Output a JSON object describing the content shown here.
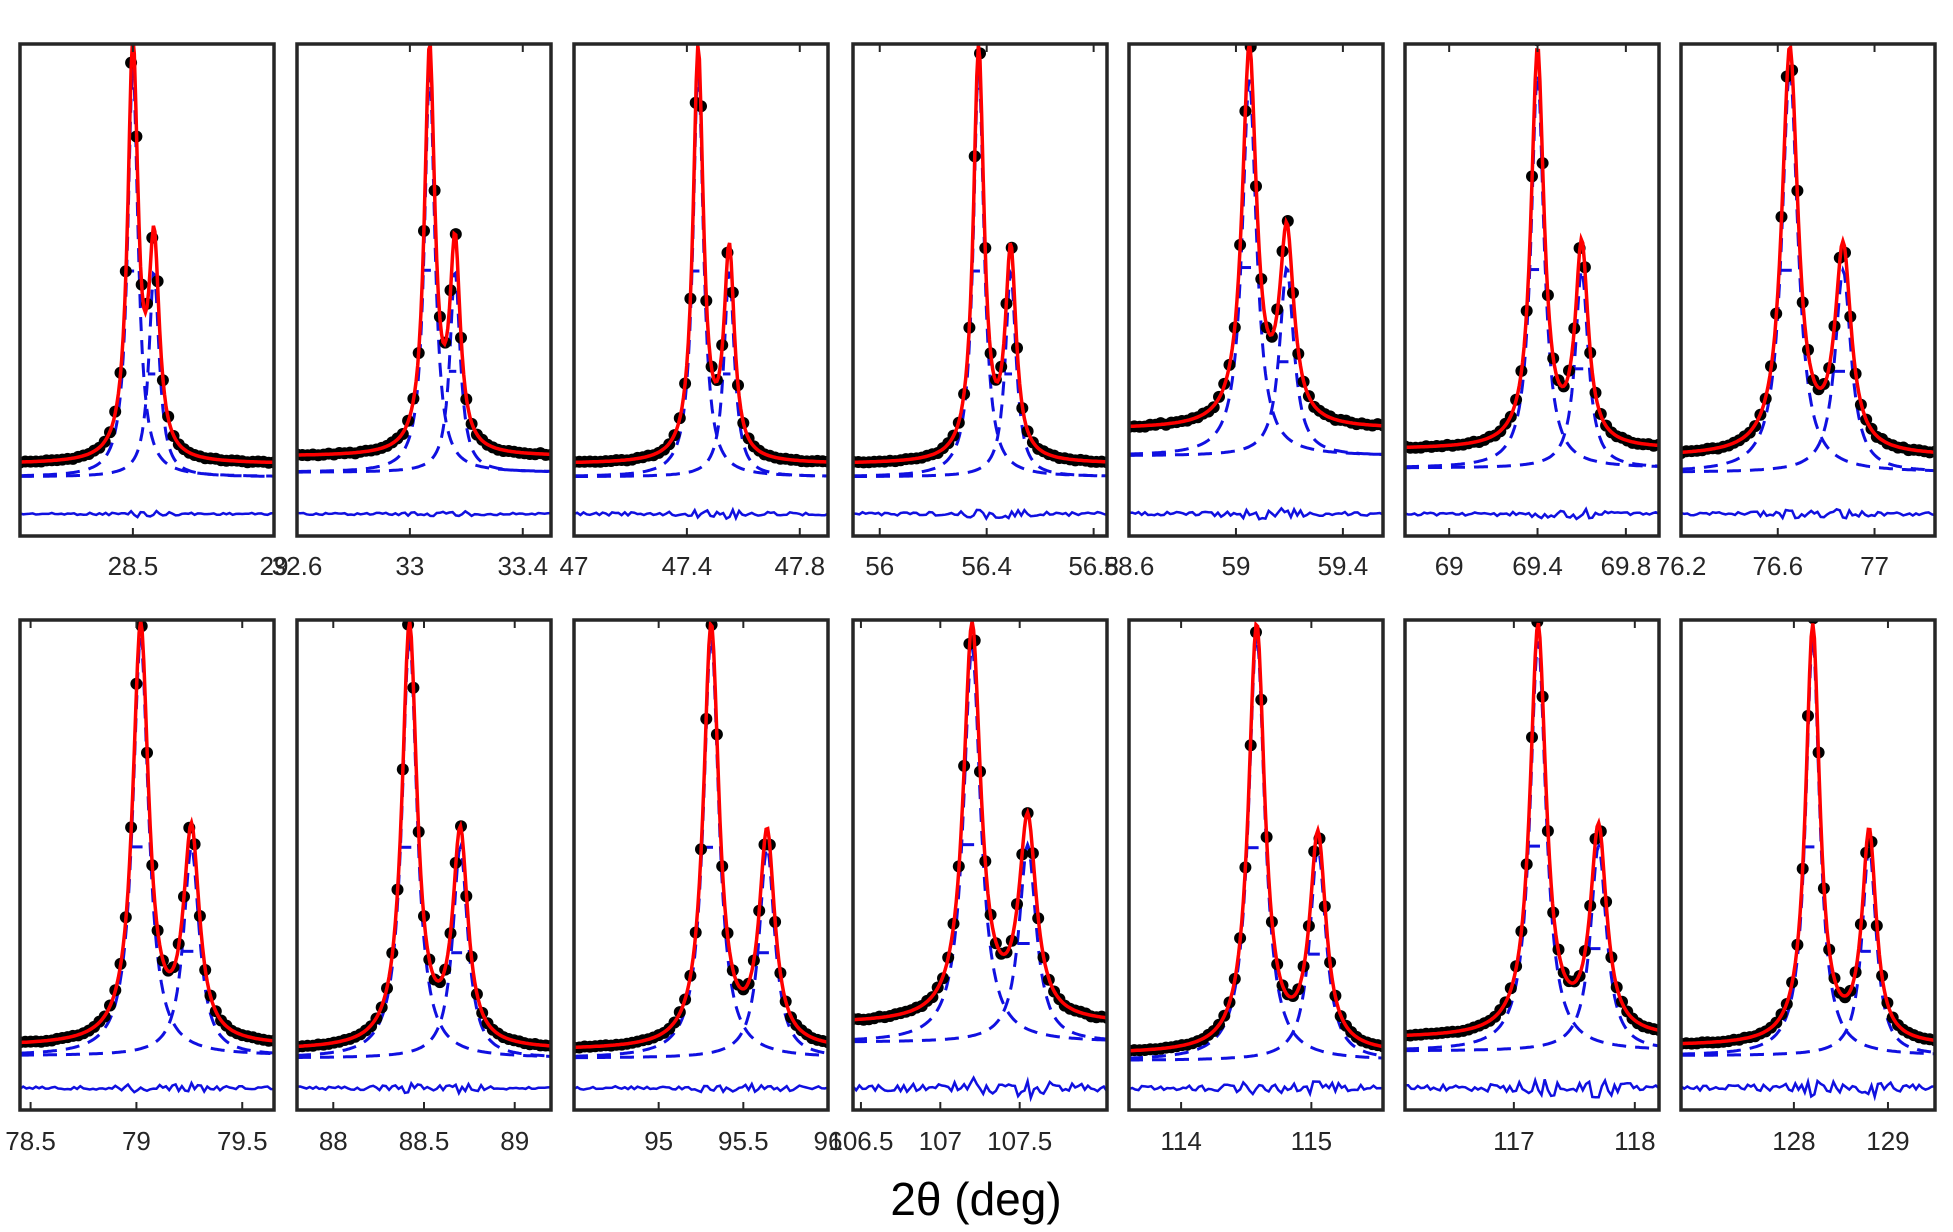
{
  "figure": {
    "xlabel": "2θ (deg)"
  },
  "colors": {
    "data": "#000000",
    "fit": "#ff0000",
    "component": "#1010e0",
    "difference": "#1010e0",
    "frame": "#262626"
  },
  "chart_data": [
    {
      "type": "line",
      "row": 1,
      "xlim": [
        28.1,
        29.0
      ],
      "ticks": [
        28.5,
        29
      ],
      "tick_labels": [
        "28.5",
        "29"
      ],
      "base": 0.08,
      "noise": 0.3,
      "peaks": [
        {
          "center": 28.5,
          "height": 1.0,
          "width": 0.022
        },
        {
          "center": 28.575,
          "height": 0.5,
          "width": 0.022
        }
      ]
    },
    {
      "type": "line",
      "row": 1,
      "xlim": [
        32.6,
        33.5
      ],
      "ticks": [
        32.6,
        33,
        33.4
      ],
      "tick_labels": [
        "32.6",
        "33",
        "33.4"
      ],
      "base": 0.1,
      "noise": 0.35,
      "peaks": [
        {
          "center": 33.07,
          "height": 1.0,
          "width": 0.022
        },
        {
          "center": 33.16,
          "height": 0.5,
          "width": 0.022
        }
      ]
    },
    {
      "type": "line",
      "row": 1,
      "xlim": [
        47.0,
        47.9
      ],
      "ticks": [
        47,
        47.4,
        47.8
      ],
      "tick_labels": [
        "47",
        "47.4",
        "47.8"
      ],
      "base": 0.08,
      "noise": 0.5,
      "peaks": [
        {
          "center": 47.44,
          "height": 1.0,
          "width": 0.022
        },
        {
          "center": 47.55,
          "height": 0.5,
          "width": 0.022
        }
      ]
    },
    {
      "type": "line",
      "row": 1,
      "xlim": [
        55.9,
        56.85
      ],
      "ticks": [
        56,
        56.4,
        56.8
      ],
      "tick_labels": [
        "56",
        "56.4",
        "56.8"
      ],
      "base": 0.08,
      "noise": 0.55,
      "peaks": [
        {
          "center": 56.37,
          "height": 1.0,
          "width": 0.024
        },
        {
          "center": 56.49,
          "height": 0.5,
          "width": 0.024
        }
      ]
    },
    {
      "type": "line",
      "row": 1,
      "xlim": [
        58.6,
        59.55
      ],
      "ticks": [
        58.6,
        59,
        59.4
      ],
      "tick_labels": [
        "58.6",
        "59",
        "59.4"
      ],
      "base": 0.18,
      "noise": 0.55,
      "peaks": [
        {
          "center": 59.05,
          "height": 1.0,
          "width": 0.032
        },
        {
          "center": 59.19,
          "height": 0.5,
          "width": 0.032
        }
      ]
    },
    {
      "type": "line",
      "row": 1,
      "xlim": [
        68.8,
        69.95
      ],
      "ticks": [
        69,
        69.4,
        69.8
      ],
      "tick_labels": [
        "69",
        "69.4",
        "69.8"
      ],
      "base": 0.12,
      "noise": 0.5,
      "peaks": [
        {
          "center": 69.4,
          "height": 1.0,
          "width": 0.035
        },
        {
          "center": 69.6,
          "height": 0.5,
          "width": 0.035
        }
      ]
    },
    {
      "type": "line",
      "row": 1,
      "xlim": [
        76.2,
        77.25
      ],
      "ticks": [
        76.2,
        76.6,
        77
      ],
      "tick_labels": [
        "76.2",
        "76.6",
        "77"
      ],
      "base": 0.1,
      "noise": 0.45,
      "peaks": [
        {
          "center": 76.65,
          "height": 1.0,
          "width": 0.04
        },
        {
          "center": 76.87,
          "height": 0.5,
          "width": 0.04
        }
      ]
    },
    {
      "type": "line",
      "row": 2,
      "xlim": [
        78.45,
        79.65
      ],
      "ticks": [
        78.5,
        79,
        79.5
      ],
      "tick_labels": [
        "78.5",
        "79",
        "79.5"
      ],
      "base": 0.06,
      "noise": 0.45,
      "peaks": [
        {
          "center": 79.02,
          "height": 1.0,
          "width": 0.045
        },
        {
          "center": 79.26,
          "height": 0.5,
          "width": 0.045
        }
      ]
    },
    {
      "type": "line",
      "row": 2,
      "xlim": [
        87.8,
        89.2
      ],
      "ticks": [
        88,
        88.5,
        89
      ],
      "tick_labels": [
        "88",
        "88.5",
        "89"
      ],
      "base": 0.05,
      "noise": 0.5,
      "peaks": [
        {
          "center": 88.42,
          "height": 1.0,
          "width": 0.05
        },
        {
          "center": 88.7,
          "height": 0.5,
          "width": 0.05
        }
      ]
    },
    {
      "type": "line",
      "row": 2,
      "xlim": [
        94.5,
        96.0
      ],
      "ticks": [
        95,
        95.5,
        96
      ],
      "tick_labels": [
        "95",
        "95.5",
        "96"
      ],
      "base": 0.05,
      "noise": 0.5,
      "peaks": [
        {
          "center": 95.31,
          "height": 1.0,
          "width": 0.055
        },
        {
          "center": 95.64,
          "height": 0.5,
          "width": 0.055
        }
      ]
    },
    {
      "type": "line",
      "row": 2,
      "xlim": [
        106.45,
        108.05
      ],
      "ticks": [
        106.5,
        107,
        107.5
      ],
      "tick_labels": [
        "106.5",
        "107",
        "107.5"
      ],
      "base": 0.12,
      "noise": 1.0,
      "peaks": [
        {
          "center": 107.2,
          "height": 1.0,
          "width": 0.065
        },
        {
          "center": 107.55,
          "height": 0.5,
          "width": 0.065
        }
      ]
    },
    {
      "type": "line",
      "row": 2,
      "xlim": [
        113.6,
        115.55
      ],
      "ticks": [
        114,
        115
      ],
      "tick_labels": [
        "114",
        "115"
      ],
      "base": 0.04,
      "noise": 0.7,
      "peaks": [
        {
          "center": 114.58,
          "height": 1.0,
          "width": 0.075
        },
        {
          "center": 115.05,
          "height": 0.5,
          "width": 0.075
        }
      ]
    },
    {
      "type": "line",
      "row": 2,
      "xlim": [
        116.1,
        118.2
      ],
      "ticks": [
        117,
        118
      ],
      "tick_labels": [
        "117",
        "118"
      ],
      "base": 0.08,
      "noise": 0.9,
      "peaks": [
        {
          "center": 117.2,
          "height": 1.0,
          "width": 0.08
        },
        {
          "center": 117.7,
          "height": 0.5,
          "width": 0.08
        }
      ]
    },
    {
      "type": "line",
      "row": 2,
      "xlim": [
        126.8,
        129.5
      ],
      "ticks": [
        128,
        129
      ],
      "tick_labels": [
        "128",
        "129"
      ],
      "base": 0.06,
      "noise": 0.9,
      "peaks": [
        {
          "center": 128.2,
          "height": 1.0,
          "width": 0.09
        },
        {
          "center": 128.8,
          "height": 0.5,
          "width": 0.09
        }
      ]
    }
  ]
}
